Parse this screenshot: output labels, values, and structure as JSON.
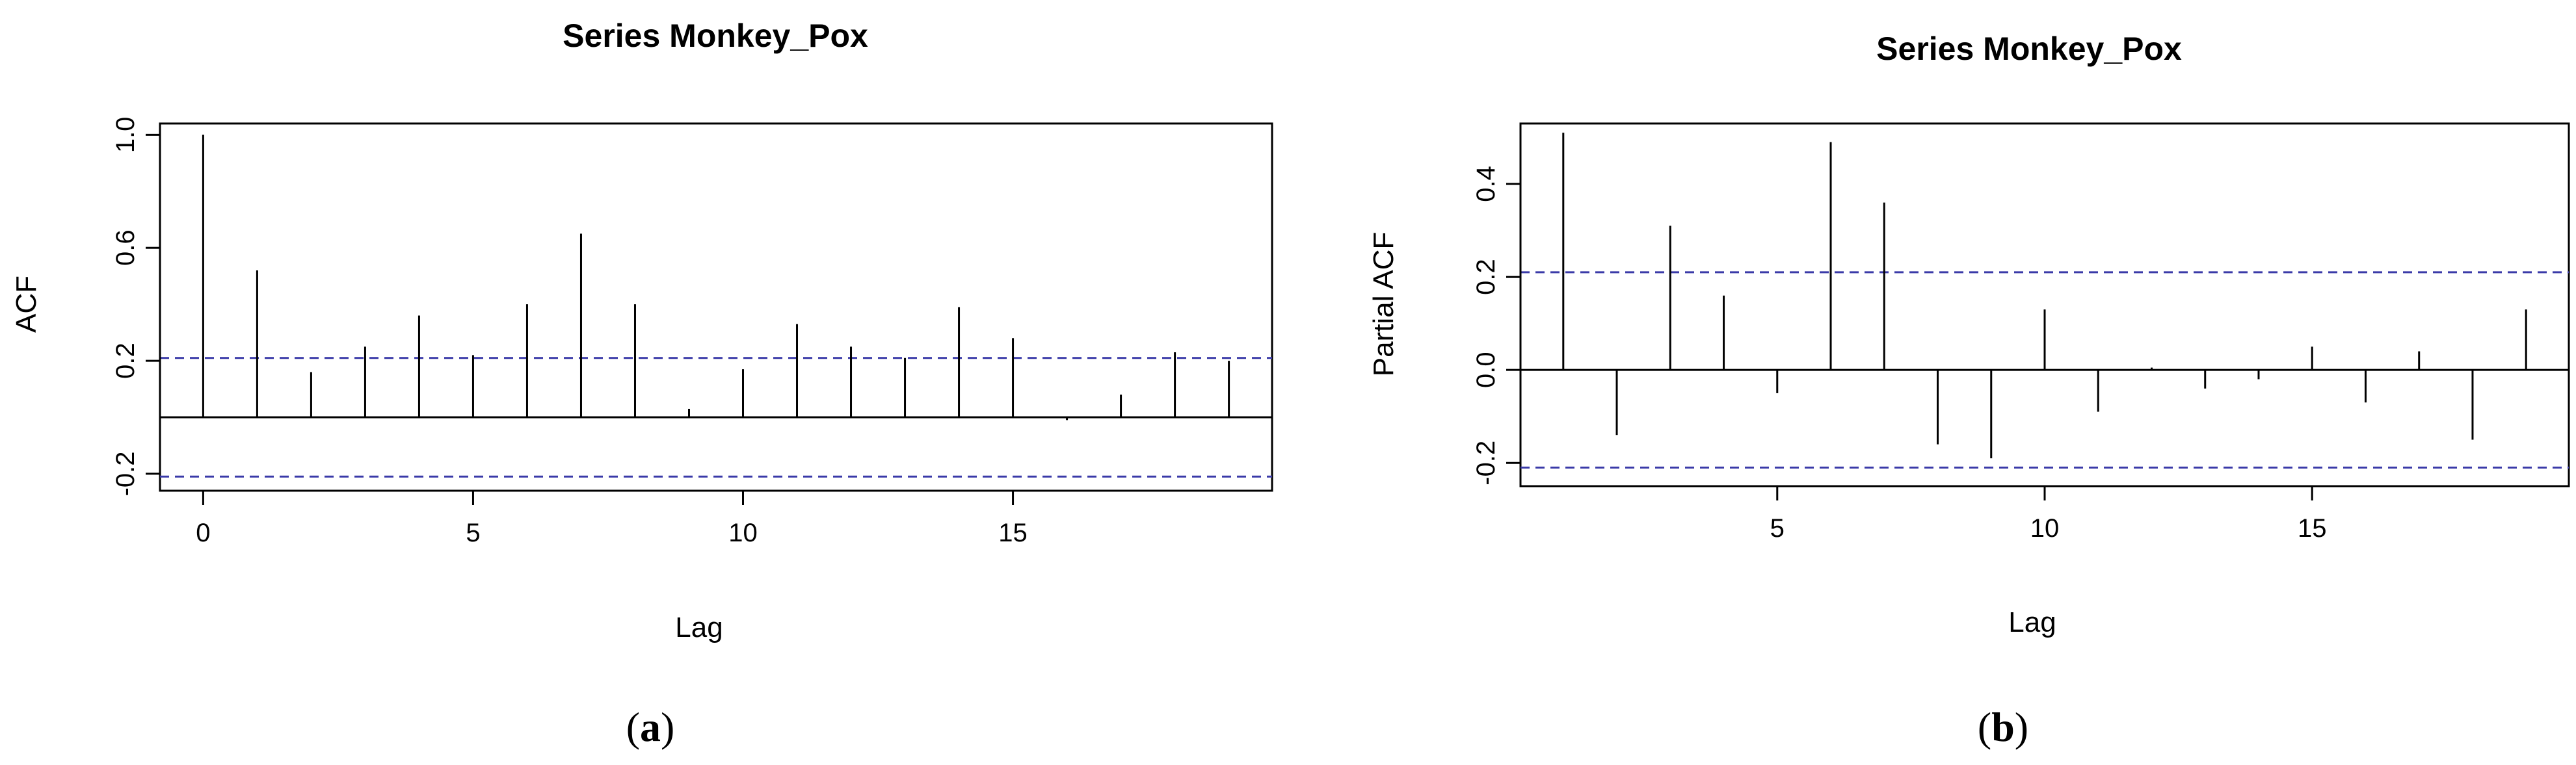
{
  "chart_data": [
    {
      "type": "bar",
      "title": "Series  Monkey_Pox",
      "xlabel": "Lag",
      "ylabel": "ACF",
      "caption_open": "(",
      "caption_letter": "a",
      "caption_close": ")",
      "xlim": [
        -0.8,
        19.8
      ],
      "ylim": [
        -0.26,
        1.04
      ],
      "xticks": [
        0,
        5,
        10,
        15
      ],
      "yticks": [
        -0.2,
        0.2,
        0.6,
        1.0
      ],
      "ytick_labels": [
        "-0.2",
        "0.2",
        "0.6",
        "1.0"
      ],
      "x": [
        0,
        1,
        2,
        3,
        4,
        5,
        6,
        7,
        8,
        9,
        10,
        11,
        12,
        13,
        14,
        15,
        16,
        17,
        18,
        19
      ],
      "values": [
        1.0,
        0.52,
        0.16,
        0.25,
        0.36,
        0.22,
        0.4,
        0.65,
        0.4,
        0.03,
        0.17,
        0.33,
        0.25,
        0.21,
        0.39,
        0.28,
        -0.01,
        0.08,
        0.23,
        0.2
      ],
      "confidence_band": [
        -0.21,
        0.21
      ],
      "colors": {
        "bars": "#000000",
        "band": "#3a3aa8"
      }
    },
    {
      "type": "bar",
      "title": "Series  Monkey_Pox",
      "xlabel": "Lag",
      "ylabel": "Partial ACF",
      "caption_open": "(",
      "caption_letter": "b",
      "caption_close": ")",
      "xlim": [
        0.2,
        19.8
      ],
      "ylim": [
        -0.25,
        0.53
      ],
      "xticks": [
        5,
        10,
        15
      ],
      "yticks": [
        -0.2,
        0.0,
        0.2,
        0.4
      ],
      "ytick_labels": [
        "-0.2",
        "0.0",
        "0.2",
        "0.4"
      ],
      "x": [
        1,
        2,
        3,
        4,
        5,
        6,
        7,
        8,
        9,
        10,
        11,
        12,
        13,
        14,
        15,
        16,
        17,
        18,
        19
      ],
      "values": [
        0.51,
        -0.14,
        0.31,
        0.16,
        -0.05,
        0.49,
        0.36,
        -0.16,
        -0.19,
        0.13,
        -0.09,
        0.005,
        -0.04,
        -0.02,
        0.05,
        -0.07,
        0.04,
        -0.15,
        0.13
      ],
      "confidence_band": [
        -0.21,
        0.21
      ],
      "colors": {
        "bars": "#000000",
        "band": "#3a3aa8"
      }
    }
  ]
}
